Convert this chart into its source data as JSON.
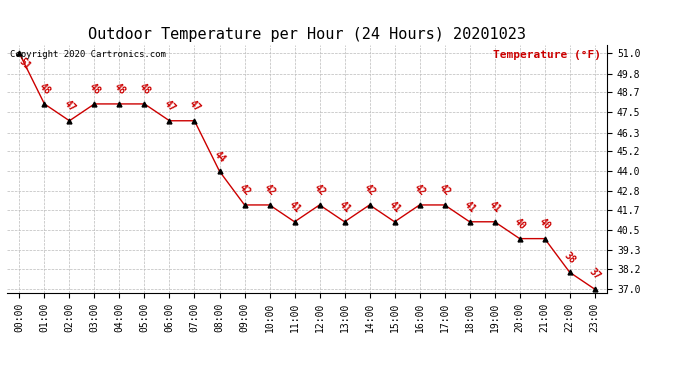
{
  "title": "Outdoor Temperature per Hour (24 Hours) 20201023",
  "copyright_text": "Copyright 2020 Cartronics.com",
  "legend_label": "Temperature (°F)",
  "hours": [
    "00:00",
    "01:00",
    "02:00",
    "03:00",
    "04:00",
    "05:00",
    "06:00",
    "07:00",
    "08:00",
    "09:00",
    "10:00",
    "11:00",
    "12:00",
    "13:00",
    "14:00",
    "15:00",
    "16:00",
    "17:00",
    "18:00",
    "19:00",
    "20:00",
    "21:00",
    "22:00",
    "23:00"
  ],
  "temperatures": [
    51.0,
    48.0,
    47.0,
    48.0,
    48.0,
    48.0,
    47.0,
    47.0,
    44.0,
    42.0,
    42.0,
    41.0,
    42.0,
    41.0,
    42.0,
    41.0,
    42.0,
    42.0,
    41.0,
    41.0,
    40.0,
    40.0,
    38.0,
    37.0
  ],
  "ylim_min": 37.0,
  "ylim_max": 51.0,
  "yticks": [
    37.0,
    38.2,
    39.3,
    40.5,
    41.7,
    42.8,
    44.0,
    45.2,
    46.3,
    47.5,
    48.7,
    49.8,
    51.0
  ],
  "line_color": "#cc0000",
  "marker_color": "#000000",
  "label_color": "#cc0000",
  "title_color": "#000000",
  "copyright_color": "#000000",
  "legend_color": "#cc0000",
  "bg_color": "#ffffff",
  "grid_color": "#bbbbbb",
  "title_fontsize": 11,
  "label_fontsize": 7,
  "copyright_fontsize": 6.5,
  "legend_fontsize": 8,
  "tick_fontsize": 7
}
